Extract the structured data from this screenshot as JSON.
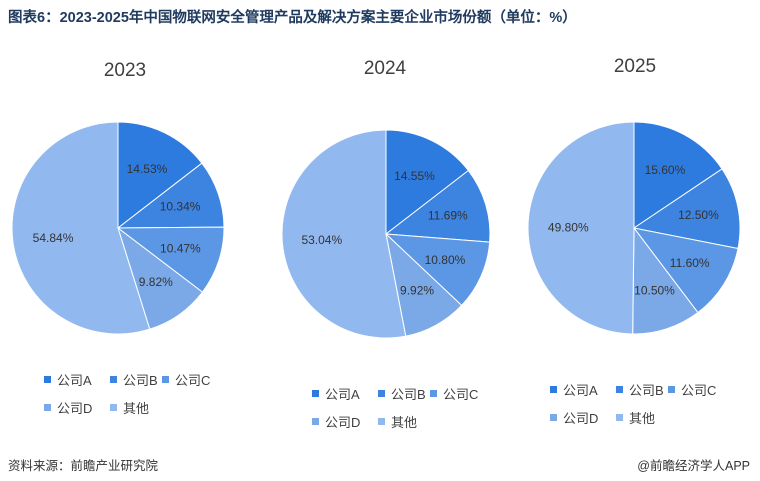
{
  "title": "图表6：2023-2025年中国物联网安全管理产品及解决方案主要企业市场份额（单位：%）",
  "footer": {
    "source": "资料来源：前瞻产业研究院",
    "brand": "@前瞻经济学人APP"
  },
  "chart_data": [
    {
      "type": "pie",
      "title": "2023",
      "categories": [
        "公司A",
        "公司B",
        "公司C",
        "公司D",
        "其他"
      ],
      "values": [
        14.53,
        10.34,
        10.47,
        9.82,
        54.84
      ],
      "labels": [
        "14.53%",
        "10.34%",
        "10.47%",
        "9.82%",
        "54.84%"
      ],
      "colors": [
        "#2e7be0",
        "#3d83e0",
        "#5b97e4",
        "#7ba9e8",
        "#92b9ef"
      ],
      "legend_position": "bottom"
    },
    {
      "type": "pie",
      "title": "2024",
      "categories": [
        "公司A",
        "公司B",
        "公司C",
        "公司D",
        "其他"
      ],
      "values": [
        14.55,
        11.69,
        10.8,
        9.92,
        53.04
      ],
      "labels": [
        "14.55%",
        "11.69%",
        "10.80%",
        "9.92%",
        "53.04%"
      ],
      "colors": [
        "#2e7be0",
        "#3d83e0",
        "#5b97e4",
        "#7ba9e8",
        "#92b9ef"
      ],
      "legend_position": "bottom"
    },
    {
      "type": "pie",
      "title": "2025",
      "categories": [
        "公司A",
        "公司B",
        "公司C",
        "公司D",
        "其他"
      ],
      "values": [
        15.6,
        12.5,
        11.6,
        10.5,
        49.8
      ],
      "labels": [
        "15.60%",
        "12.50%",
        "11.60%",
        "10.50%",
        "49.80%"
      ],
      "colors": [
        "#2e7be0",
        "#3d83e0",
        "#5b97e4",
        "#7ba9e8",
        "#92b9ef"
      ],
      "legend_position": "bottom"
    }
  ]
}
